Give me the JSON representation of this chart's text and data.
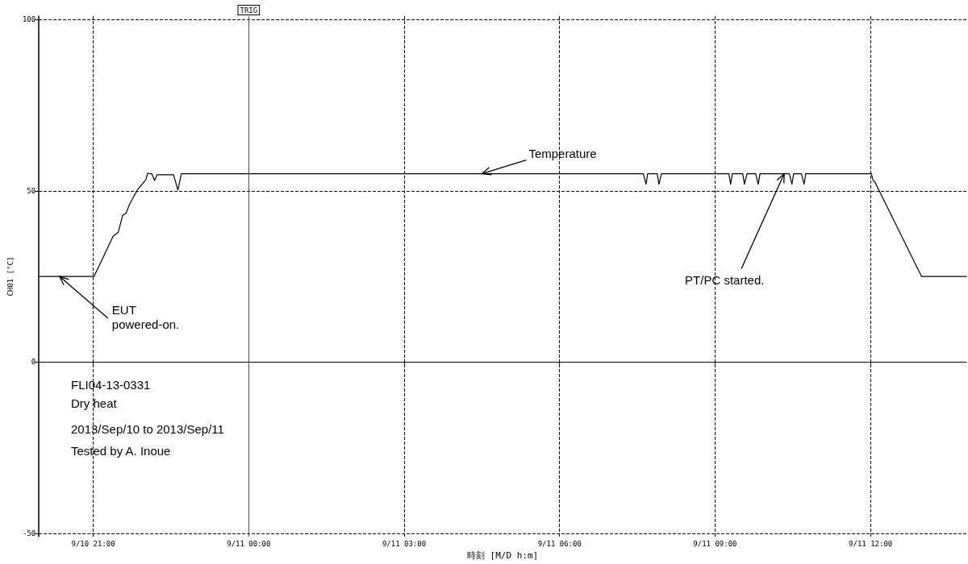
{
  "chart_data": {
    "type": "line",
    "xlabel": "時刻 [M/D h:m]",
    "ylabel": "CH01 [°C]",
    "x": [
      "2013-09-10T19:57",
      "2013-09-10T21:00",
      "2013-09-10T21:01",
      "2013-09-10T21:23",
      "2013-09-10T21:29",
      "2013-09-10T21:34",
      "2013-09-10T21:38",
      "2013-09-10T21:42",
      "2013-09-10T21:47",
      "2013-09-10T21:51",
      "2013-09-10T22:01",
      "2013-09-10T22:03",
      "2013-09-10T22:08",
      "2013-09-10T22:11",
      "2013-09-10T22:14",
      "2013-09-10T22:33",
      "2013-09-10T22:38",
      "2013-09-10T22:42",
      "2013-09-11T07:37",
      "2013-09-11T07:40",
      "2013-09-11T07:42",
      "2013-09-11T07:53",
      "2013-09-11T07:55",
      "2013-09-11T07:58",
      "2013-09-11T09:16",
      "2013-09-11T09:18",
      "2013-09-11T09:20",
      "2013-09-11T09:32",
      "2013-09-11T09:34",
      "2013-09-11T09:37",
      "2013-09-11T09:47",
      "2013-09-11T09:50",
      "2013-09-11T09:52",
      "2013-09-11T10:26",
      "2013-09-11T10:29",
      "2013-09-11T10:31",
      "2013-09-11T10:40",
      "2013-09-11T10:43",
      "2013-09-11T10:45",
      "2013-09-11T12:01",
      "2013-09-11T12:03",
      "2013-09-11T12:05",
      "2013-09-11T12:59",
      "2013-09-11T13:51"
    ],
    "series": [
      {
        "color": "#000000",
        "values": [
          25,
          25,
          25,
          36.7,
          37.9,
          42.8,
          43.5,
          46,
          48.4,
          50.2,
          53.3,
          55.1,
          54.9,
          53,
          54.7,
          54.7,
          50.2,
          55,
          55,
          51.9,
          55,
          55,
          51.9,
          55,
          55,
          51.9,
          55,
          55,
          51.9,
          55,
          55,
          51.9,
          55,
          55,
          51.9,
          55,
          55,
          51.9,
          55,
          55,
          53,
          52.6,
          25,
          25
        ]
      }
    ],
    "xlim": [
      "2013-09-10T19:57",
      "2013-09-11T13:51"
    ],
    "xticks": [
      {
        "value": "2013-09-10T21:00",
        "label": "9/10 21:00"
      },
      {
        "value": "2013-09-11T00:00",
        "label": "9/11 00:00"
      },
      {
        "value": "2013-09-11T03:00",
        "label": "9/11 03:00"
      },
      {
        "value": "2013-09-11T06:00",
        "label": "9/11 06:00"
      },
      {
        "value": "2013-09-11T09:00",
        "label": "9/11 09:00"
      },
      {
        "value": "2013-09-11T12:00",
        "label": "9/11 12:00"
      }
    ],
    "ylim": [
      -51,
      101
    ],
    "yticks": [
      -50,
      0,
      50,
      100
    ],
    "grid": true,
    "marker": "none",
    "line_style": "solid",
    "ref_lines": [
      {
        "axis": "x",
        "value": "2013-09-11T00:00",
        "label": "TRIG",
        "color": "#555555",
        "line_style": "solid"
      }
    ],
    "annotations": [
      {
        "text": "Temperature",
        "x": "2013-09-11T04:30",
        "y": 55
      },
      {
        "text": "EUT powered-on.",
        "x": "2013-09-10T20:21",
        "y": 25
      },
      {
        "text": "PT/PC started.",
        "x": "2013-09-11T10:20",
        "y": 55
      },
      "FLI04-13-0331",
      "Dry heat",
      "2013/Sep/10 to 2013/Sep/11",
      "Tested by A. Inoue"
    ]
  }
}
